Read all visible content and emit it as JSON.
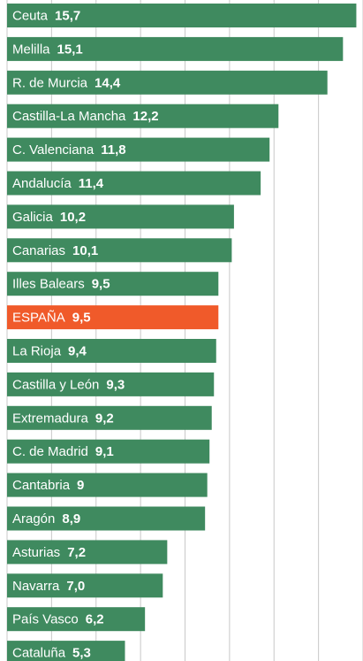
{
  "chart_data": {
    "type": "barh",
    "categories": [
      "Ceuta",
      "Melilla",
      "R. de Murcia",
      "Castilla-La Mancha",
      "C. Valenciana",
      "Andalucía",
      "Galicia",
      "Canarias",
      "Illes Balears",
      "ESPAÑA",
      "La Rioja",
      "Castilla y León",
      "Extremadura",
      "C. de Madrid",
      "Cantabria",
      "Aragón",
      "Asturias",
      "Navarra",
      "País Vasco",
      "Cataluña"
    ],
    "values": [
      15.7,
      15.1,
      14.4,
      12.2,
      11.8,
      11.4,
      10.2,
      10.1,
      9.5,
      9.5,
      9.4,
      9.3,
      9.2,
      9.1,
      9,
      8.9,
      7.2,
      7.0,
      6.2,
      5.3
    ],
    "value_labels": [
      "15,7",
      "15,1",
      "14,4",
      "12,2",
      "11,8",
      "11,4",
      "10,2",
      "10,1",
      "9,5",
      "9,5",
      "9,4",
      "9,3",
      "9,2",
      "9,1",
      "9",
      "8,9",
      "7,2",
      "7,0",
      "6,2",
      "5,3"
    ],
    "colors": [
      "#3f8a5f",
      "#3f8a5f",
      "#3f8a5f",
      "#3f8a5f",
      "#3f8a5f",
      "#3f8a5f",
      "#3f8a5f",
      "#3f8a5f",
      "#3f8a5f",
      "#f05a2a",
      "#3f8a5f",
      "#3f8a5f",
      "#3f8a5f",
      "#3f8a5f",
      "#3f8a5f",
      "#3f8a5f",
      "#3f8a5f",
      "#3f8a5f",
      "#3f8a5f",
      "#3f8a5f"
    ],
    "xlim": [
      0,
      16
    ],
    "xticks": [
      0,
      2,
      4,
      6,
      8,
      10,
      12,
      14,
      16
    ],
    "grid": true
  }
}
